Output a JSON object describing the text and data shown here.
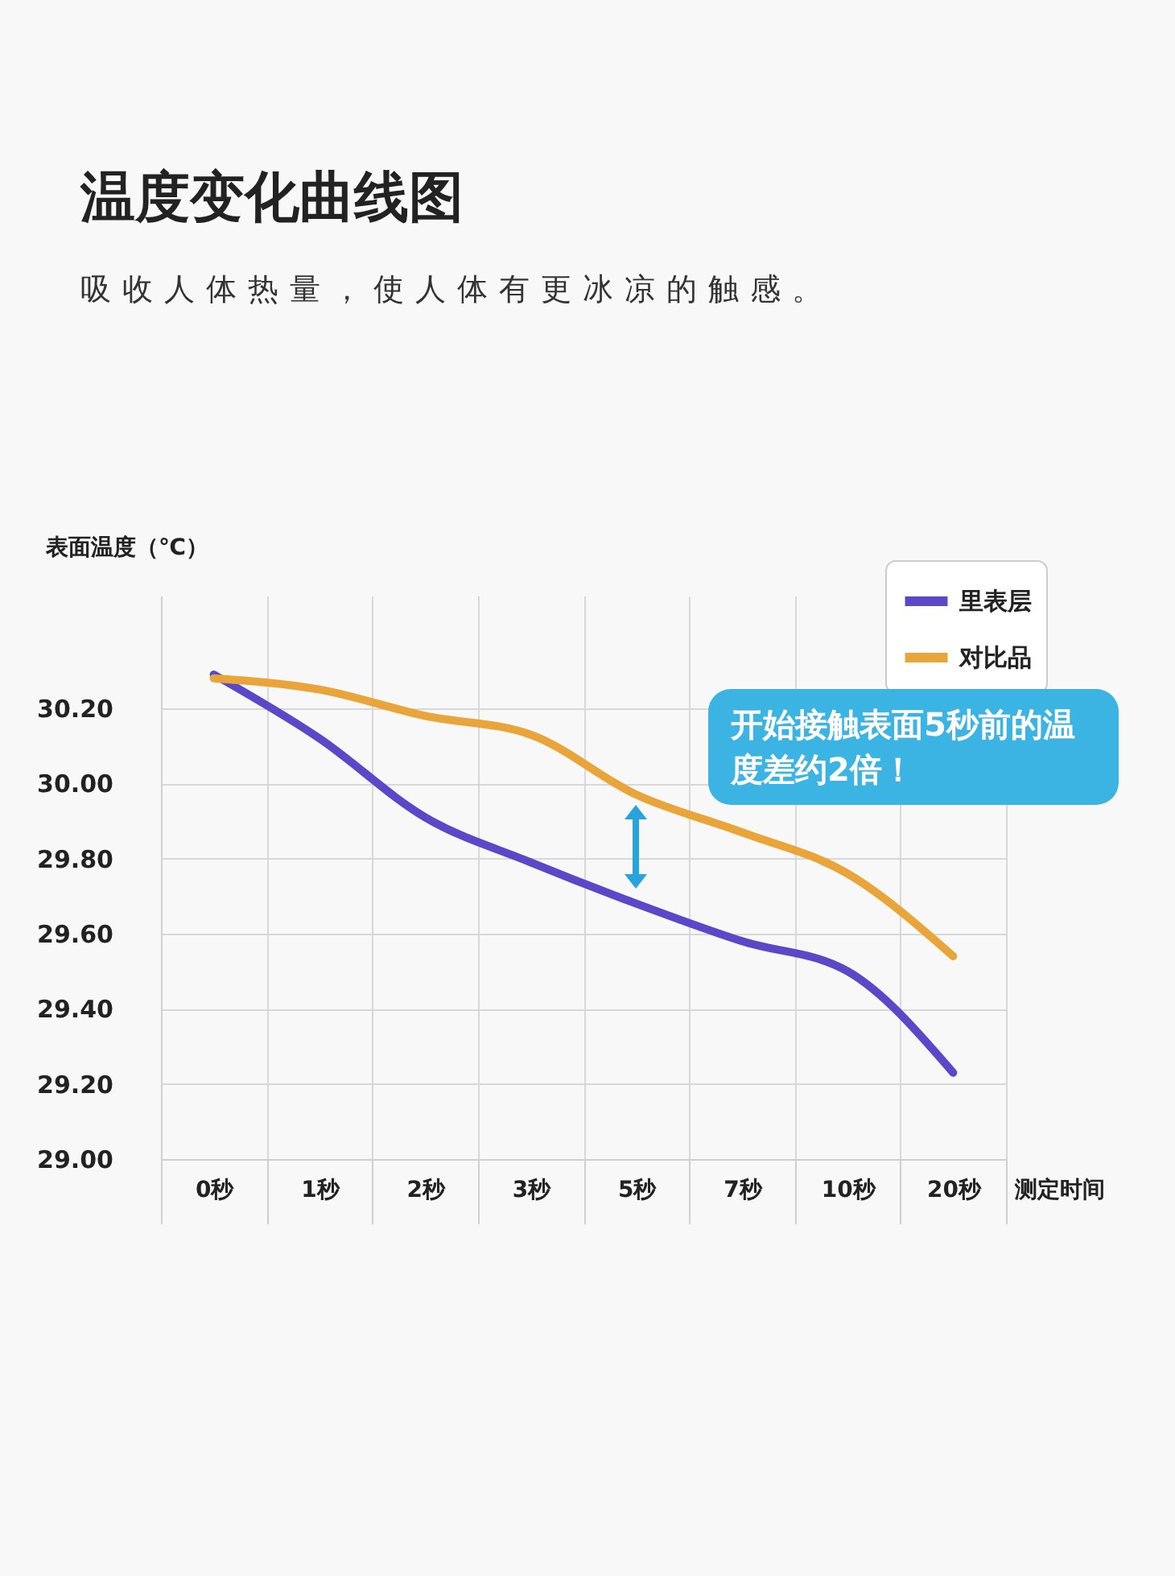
{
  "chart_data": {
    "type": "line",
    "title": "温度变化曲线图",
    "subtitle": "吸收人体热量，使人体有更冰凉的触感。",
    "xlabel": "测定时间",
    "ylabel": "表面温度（℃）",
    "categories": [
      "0秒",
      "1秒",
      "2秒",
      "3秒",
      "5秒",
      "7秒",
      "10秒",
      "20秒"
    ],
    "series": [
      {
        "name": "里表层",
        "color": "#5b48c8",
        "values": [
          30.29,
          30.12,
          29.91,
          29.79,
          29.68,
          29.58,
          29.5,
          29.23
        ]
      },
      {
        "name": "对比品",
        "color": "#e9a53a",
        "values": [
          30.28,
          30.25,
          30.18,
          30.13,
          29.97,
          29.87,
          29.76,
          29.54
        ]
      }
    ],
    "ylim": [
      29.0,
      30.5
    ],
    "yticks": [
      {
        "value": 29.0,
        "label": "29.00"
      },
      {
        "value": 29.2,
        "label": "29.20"
      },
      {
        "value": 29.4,
        "label": "29.40"
      },
      {
        "value": 29.6,
        "label": "29.60"
      },
      {
        "value": 29.8,
        "label": "29.80"
      },
      {
        "value": 30.0,
        "label": "30.00"
      },
      {
        "value": 30.2,
        "label": "30.20"
      }
    ],
    "grid": true,
    "legend": "top right",
    "marker": "none",
    "line_style": "solid",
    "annotations": [
      "开始接触表面5秒前的温度差约2倍！"
    ]
  }
}
